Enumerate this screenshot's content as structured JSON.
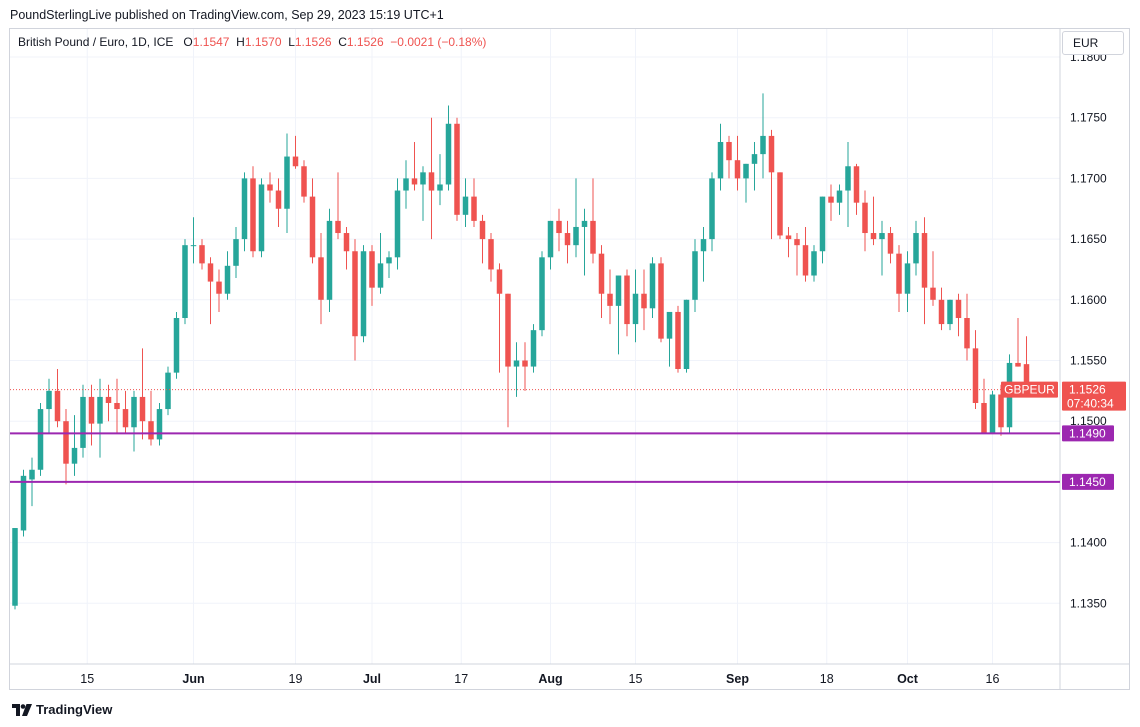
{
  "header": {
    "publisher_line": "PoundSterlingLive published on TradingView.com, Sep 29, 2023 15:19 UTC+1"
  },
  "legend": {
    "symbol": "British Pound / Euro, 1D, ICE",
    "o_label": "O",
    "o_value": "1.1547",
    "h_label": "H",
    "h_value": "1.1570",
    "l_label": "L",
    "l_value": "1.1526",
    "c_label": "C",
    "c_value": "1.1526",
    "change": "−0.0021 (−0.18%)"
  },
  "currency_button": "EUR",
  "footer": {
    "brand": "TradingView"
  },
  "colors": {
    "up": "#26a69a",
    "down": "#ef5350",
    "level": "#9c27b0",
    "grid": "#f0f3fa"
  },
  "chart_data": {
    "type": "candlestick",
    "title": "British Pound / Euro, 1D, ICE",
    "ylim": [
      1.13,
      1.18
    ],
    "y_ticks": [
      "1.1350",
      "1.1400",
      "1.1450",
      "1.1500",
      "1.1550",
      "1.1600",
      "1.1650",
      "1.1700",
      "1.1750",
      "1.1800"
    ],
    "x_ticks": [
      {
        "label": "15",
        "bar": 8.5
      },
      {
        "label": "Jun",
        "bar": 21
      },
      {
        "label": "19",
        "bar": 33
      },
      {
        "label": "Jul",
        "bar": 42
      },
      {
        "label": "17",
        "bar": 52.5
      },
      {
        "label": "Aug",
        "bar": 63
      },
      {
        "label": "15",
        "bar": 73
      },
      {
        "label": "Sep",
        "bar": 85
      },
      {
        "label": "18",
        "bar": 95.5
      },
      {
        "label": "Oct",
        "bar": 105
      },
      {
        "label": "16",
        "bar": 115
      }
    ],
    "price_label": {
      "symbol": "GBPEUR",
      "price": "1.1526",
      "countdown": "07:40:34",
      "value": 1.1526
    },
    "levels": [
      {
        "label": "1.1490",
        "value": 1.149
      },
      {
        "label": "1.1450",
        "value": 1.145
      }
    ],
    "candles": [
      [
        1.1348,
        1.1412,
        1.1345,
        1.1412
      ],
      [
        1.141,
        1.146,
        1.1405,
        1.1455
      ],
      [
        1.1452,
        1.147,
        1.143,
        1.146
      ],
      [
        1.146,
        1.1515,
        1.1455,
        1.151
      ],
      [
        1.151,
        1.1535,
        1.149,
        1.1525
      ],
      [
        1.1525,
        1.1543,
        1.1495,
        1.15
      ],
      [
        1.15,
        1.151,
        1.1448,
        1.1465
      ],
      [
        1.1465,
        1.1505,
        1.1455,
        1.1478
      ],
      [
        1.1478,
        1.153,
        1.147,
        1.152
      ],
      [
        1.152,
        1.153,
        1.148,
        1.1498
      ],
      [
        1.1498,
        1.1535,
        1.147,
        1.152
      ],
      [
        1.152,
        1.153,
        1.15,
        1.1515
      ],
      [
        1.1515,
        1.1535,
        1.149,
        1.151
      ],
      [
        1.151,
        1.1525,
        1.149,
        1.1495
      ],
      [
        1.1495,
        1.1525,
        1.1475,
        1.152
      ],
      [
        1.152,
        1.156,
        1.1485,
        1.15
      ],
      [
        1.15,
        1.1525,
        1.148,
        1.1485
      ],
      [
        1.1485,
        1.1515,
        1.148,
        1.151
      ],
      [
        1.151,
        1.1545,
        1.1505,
        1.154
      ],
      [
        1.154,
        1.159,
        1.1535,
        1.1585
      ],
      [
        1.1585,
        1.165,
        1.158,
        1.1645
      ],
      [
        1.1645,
        1.1668,
        1.163,
        1.1645
      ],
      [
        1.1645,
        1.165,
        1.1625,
        1.163
      ],
      [
        1.163,
        1.1635,
        1.158,
        1.1615
      ],
      [
        1.1615,
        1.1625,
        1.159,
        1.1605
      ],
      [
        1.1605,
        1.164,
        1.16,
        1.1628
      ],
      [
        1.1628,
        1.166,
        1.1618,
        1.165
      ],
      [
        1.165,
        1.1705,
        1.164,
        1.17
      ],
      [
        1.17,
        1.171,
        1.1635,
        1.164
      ],
      [
        1.164,
        1.17,
        1.1635,
        1.1695
      ],
      [
        1.1695,
        1.1705,
        1.168,
        1.169
      ],
      [
        1.169,
        1.17,
        1.166,
        1.1675
      ],
      [
        1.1675,
        1.1737,
        1.1655,
        1.1718
      ],
      [
        1.1718,
        1.1735,
        1.1708,
        1.171
      ],
      [
        1.171,
        1.1715,
        1.168,
        1.1685
      ],
      [
        1.1685,
        1.17,
        1.163,
        1.1635
      ],
      [
        1.1635,
        1.1655,
        1.158,
        1.16
      ],
      [
        1.16,
        1.1675,
        1.159,
        1.1665
      ],
      [
        1.1665,
        1.1705,
        1.165,
        1.1655
      ],
      [
        1.1655,
        1.166,
        1.1625,
        1.164
      ],
      [
        1.164,
        1.165,
        1.155,
        1.157
      ],
      [
        1.157,
        1.1645,
        1.1565,
        1.164
      ],
      [
        1.164,
        1.1645,
        1.1595,
        1.161
      ],
      [
        1.161,
        1.1655,
        1.1605,
        1.163
      ],
      [
        1.163,
        1.164,
        1.1618,
        1.1635
      ],
      [
        1.1635,
        1.17,
        1.1625,
        1.169
      ],
      [
        1.169,
        1.1715,
        1.1675,
        1.17
      ],
      [
        1.17,
        1.173,
        1.169,
        1.1695
      ],
      [
        1.1695,
        1.171,
        1.1665,
        1.1705
      ],
      [
        1.1705,
        1.175,
        1.165,
        1.169
      ],
      [
        1.169,
        1.172,
        1.1678,
        1.1695
      ],
      [
        1.1695,
        1.176,
        1.169,
        1.1745
      ],
      [
        1.1745,
        1.175,
        1.1665,
        1.167
      ],
      [
        1.167,
        1.17,
        1.166,
        1.1685
      ],
      [
        1.1685,
        1.17,
        1.166,
        1.1665
      ],
      [
        1.1665,
        1.167,
        1.163,
        1.165
      ],
      [
        1.165,
        1.1655,
        1.1615,
        1.1625
      ],
      [
        1.1625,
        1.163,
        1.154,
        1.1605
      ],
      [
        1.1605,
        1.1605,
        1.1495,
        1.1545
      ],
      [
        1.1545,
        1.1565,
        1.152,
        1.155
      ],
      [
        1.155,
        1.1565,
        1.1525,
        1.1545
      ],
      [
        1.1545,
        1.158,
        1.154,
        1.1575
      ],
      [
        1.1575,
        1.164,
        1.157,
        1.1635
      ],
      [
        1.1635,
        1.1665,
        1.1625,
        1.1665
      ],
      [
        1.1665,
        1.1675,
        1.164,
        1.1655
      ],
      [
        1.1655,
        1.1665,
        1.163,
        1.1645
      ],
      [
        1.1645,
        1.17,
        1.1635,
        1.166
      ],
      [
        1.166,
        1.1675,
        1.162,
        1.1665
      ],
      [
        1.1665,
        1.17,
        1.163,
        1.1638
      ],
      [
        1.1638,
        1.1645,
        1.1585,
        1.1605
      ],
      [
        1.1605,
        1.1625,
        1.158,
        1.1595
      ],
      [
        1.1595,
        1.162,
        1.1555,
        1.162
      ],
      [
        1.162,
        1.1625,
        1.157,
        1.158
      ],
      [
        1.158,
        1.1625,
        1.1565,
        1.1605
      ],
      [
        1.1605,
        1.1625,
        1.1575,
        1.1593
      ],
      [
        1.1593,
        1.1635,
        1.1585,
        1.163
      ],
      [
        1.163,
        1.1635,
        1.1565,
        1.1568
      ],
      [
        1.1568,
        1.159,
        1.1545,
        1.159
      ],
      [
        1.159,
        1.1595,
        1.154,
        1.1543
      ],
      [
        1.1543,
        1.16,
        1.154,
        1.16
      ],
      [
        1.16,
        1.165,
        1.159,
        1.164
      ],
      [
        1.164,
        1.166,
        1.1615,
        1.165
      ],
      [
        1.165,
        1.1705,
        1.164,
        1.17
      ],
      [
        1.17,
        1.1745,
        1.169,
        1.173
      ],
      [
        1.173,
        1.1735,
        1.17,
        1.1715
      ],
      [
        1.1715,
        1.1735,
        1.169,
        1.17
      ],
      [
        1.17,
        1.1712,
        1.168,
        1.1712
      ],
      [
        1.1712,
        1.173,
        1.169,
        1.172
      ],
      [
        1.172,
        1.177,
        1.17,
        1.1735
      ],
      [
        1.1735,
        1.174,
        1.165,
        1.1705
      ],
      [
        1.1705,
        1.1705,
        1.165,
        1.1653
      ],
      [
        1.1653,
        1.166,
        1.1635,
        1.165
      ],
      [
        1.165,
        1.1655,
        1.162,
        1.1645
      ],
      [
        1.1645,
        1.166,
        1.1615,
        1.162
      ],
      [
        1.162,
        1.1645,
        1.1615,
        1.164
      ],
      [
        1.164,
        1.1685,
        1.163,
        1.1685
      ],
      [
        1.1685,
        1.1695,
        1.1665,
        1.168
      ],
      [
        1.168,
        1.1695,
        1.167,
        1.169
      ],
      [
        1.169,
        1.173,
        1.166,
        1.171
      ],
      [
        1.171,
        1.1712,
        1.167,
        1.168
      ],
      [
        1.168,
        1.169,
        1.164,
        1.1655
      ],
      [
        1.1655,
        1.1685,
        1.1645,
        1.165
      ],
      [
        1.165,
        1.1665,
        1.162,
        1.1655
      ],
      [
        1.1655,
        1.166,
        1.163,
        1.1638
      ],
      [
        1.1638,
        1.1645,
        1.159,
        1.1605
      ],
      [
        1.1605,
        1.164,
        1.159,
        1.163
      ],
      [
        1.163,
        1.1665,
        1.162,
        1.1655
      ],
      [
        1.1655,
        1.1668,
        1.158,
        1.161
      ],
      [
        1.161,
        1.164,
        1.1595,
        1.16
      ],
      [
        1.16,
        1.161,
        1.1575,
        1.158
      ],
      [
        1.158,
        1.16,
        1.1575,
        1.16
      ],
      [
        1.16,
        1.1605,
        1.157,
        1.1585
      ],
      [
        1.1585,
        1.1605,
        1.155,
        1.156
      ],
      [
        1.156,
        1.1575,
        1.151,
        1.1515
      ],
      [
        1.1515,
        1.1535,
        1.149,
        1.149
      ],
      [
        1.149,
        1.1525,
        1.149,
        1.1522
      ],
      [
        1.1522,
        1.153,
        1.1488,
        1.1495
      ],
      [
        1.1495,
        1.1555,
        1.149,
        1.1548
      ],
      [
        1.1548,
        1.1585,
        1.1545,
        1.1545
      ],
      [
        1.1547,
        1.157,
        1.1526,
        1.1526
      ]
    ]
  }
}
